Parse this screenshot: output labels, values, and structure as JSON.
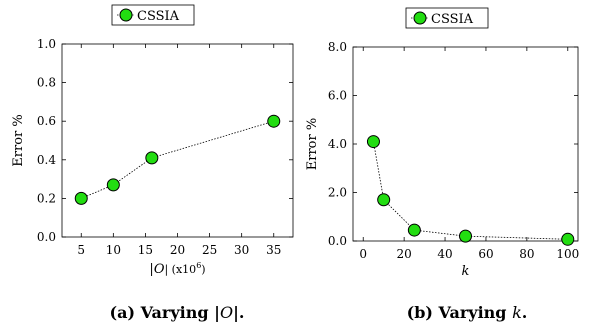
{
  "chart_data": [
    {
      "type": "line",
      "legend": "CSSIA",
      "legend_position": "top",
      "xlabel": "|O| (x10",
      "xlabel_sup": "6",
      "xlabel_close": ")",
      "ylabel": "Error %",
      "xlim": [
        2,
        38
      ],
      "ylim": [
        0,
        1.0
      ],
      "xticks": [
        5,
        10,
        15,
        20,
        25,
        30,
        35
      ],
      "yticks": [
        "0.0",
        "0.2",
        "0.4",
        "0.6",
        "0.8",
        "1.0"
      ],
      "grid": false,
      "series": [
        {
          "name": "CSSIA",
          "color": "#22dd11",
          "x": [
            5,
            10,
            16,
            35
          ],
          "y": [
            0.2,
            0.27,
            0.41,
            0.6
          ]
        }
      ],
      "caption": "(a) Varying |O|."
    },
    {
      "type": "line",
      "legend": "CSSIA",
      "legend_position": "top",
      "xlabel": "k",
      "ylabel": "Error %",
      "xlim": [
        -5,
        105
      ],
      "ylim": [
        0,
        8.0
      ],
      "xticks": [
        0,
        20,
        40,
        60,
        80,
        100
      ],
      "yticks": [
        "0.0",
        "2.0",
        "4.0",
        "6.0",
        "8.0"
      ],
      "grid": false,
      "series": [
        {
          "name": "CSSIA",
          "color": "#22dd11",
          "x": [
            5,
            10,
            25,
            50,
            100
          ],
          "y": [
            4.1,
            1.7,
            0.45,
            0.2,
            0.07
          ]
        }
      ],
      "caption": "(b) Varying k."
    }
  ]
}
